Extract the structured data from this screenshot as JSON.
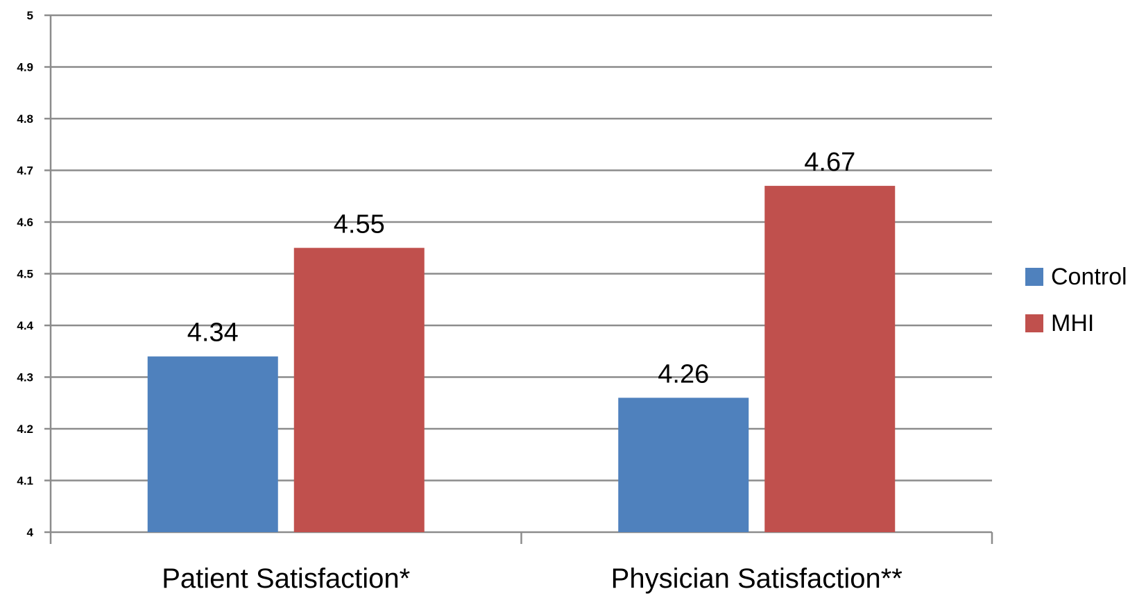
{
  "chart_data": {
    "type": "bar",
    "title": "",
    "xlabel": "",
    "ylabel": "",
    "categories": [
      "Patient Satisfaction*",
      "Physician Satisfaction**"
    ],
    "series": [
      {
        "name": "Control",
        "values": [
          4.34,
          4.26
        ],
        "labels": [
          "4.34",
          "4.26"
        ],
        "color": "#4f81bd"
      },
      {
        "name": "MHI",
        "values": [
          4.55,
          4.67
        ],
        "labels": [
          "4.55",
          "4.67"
        ],
        "color": "#c0504d"
      }
    ],
    "ylim": [
      4,
      5
    ],
    "yticks": [
      "4",
      "4.1",
      "4.2",
      "4.3",
      "4.4",
      "4.5",
      "4.6",
      "4.7",
      "4.8",
      "4.9",
      "5"
    ],
    "grid": true,
    "legend_position": "right"
  }
}
